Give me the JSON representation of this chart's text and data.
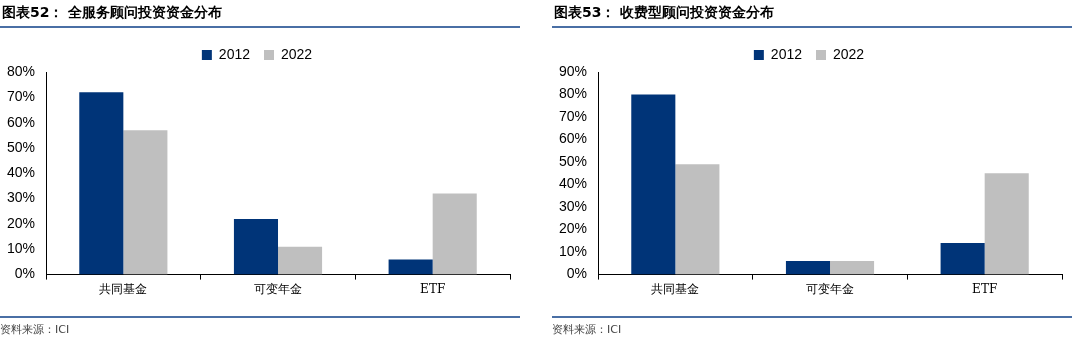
{
  "chart_data": [
    {
      "type": "bar",
      "title": "图表52： 全服务顾问投资资金分布",
      "categories": [
        "共同基金",
        "可变年金",
        "ETF"
      ],
      "series": [
        {
          "name": "2012",
          "color": "#003478",
          "values": [
            72,
            22,
            6
          ]
        },
        {
          "name": "2022",
          "color": "#bfbfbf",
          "values": [
            57,
            11,
            32
          ]
        }
      ],
      "ylim": [
        0,
        80
      ],
      "yticks": [
        {
          "value": 0,
          "label": "0%"
        },
        {
          "value": 10,
          "label": "10%"
        },
        {
          "value": 20,
          "label": "20%"
        },
        {
          "value": 30,
          "label": "30%"
        },
        {
          "value": 40,
          "label": "40%"
        },
        {
          "value": 50,
          "label": "50%"
        },
        {
          "value": 60,
          "label": "60%"
        },
        {
          "value": 70,
          "label": "70%"
        },
        {
          "value": 80,
          "label": "80%"
        }
      ],
      "legend": "top",
      "annotations": [
        "资料来源：ICI"
      ]
    },
    {
      "type": "bar",
      "title": "图表53： 收费型顾问投资资金分布",
      "categories": [
        "共同基金",
        "可变年金",
        "ETF"
      ],
      "series": [
        {
          "name": "2012",
          "color": "#003478",
          "values": [
            80,
            6,
            14
          ]
        },
        {
          "name": "2022",
          "color": "#bfbfbf",
          "values": [
            49,
            6,
            45
          ]
        }
      ],
      "ylim": [
        0,
        90
      ],
      "yticks": [
        {
          "value": 0,
          "label": "0%"
        },
        {
          "value": 10,
          "label": "10%"
        },
        {
          "value": 20,
          "label": "20%"
        },
        {
          "value": 30,
          "label": "30%"
        },
        {
          "value": 40,
          "label": "40%"
        },
        {
          "value": 50,
          "label": "50%"
        },
        {
          "value": 60,
          "label": "60%"
        },
        {
          "value": 70,
          "label": "70%"
        },
        {
          "value": 80,
          "label": "80%"
        },
        {
          "value": 90,
          "label": "90%"
        }
      ],
      "legend": "top",
      "annotations": [
        "资料来源：ICI"
      ]
    }
  ]
}
